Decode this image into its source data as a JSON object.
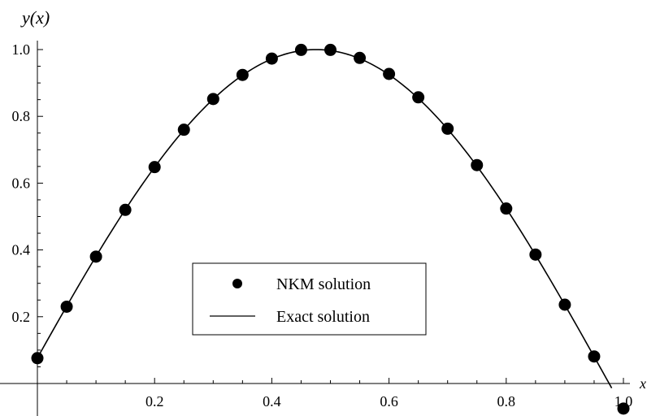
{
  "chart_data": {
    "type": "line",
    "ylabel": "y(x)",
    "xlabel": "x",
    "xlim": [
      0,
      1
    ],
    "ylim": [
      0,
      1.03
    ],
    "x_ticks": [
      0.2,
      0.4,
      0.6,
      0.8,
      1.0
    ],
    "x_tick_labels": [
      "0.2",
      "0.4",
      "0.6",
      "0.8",
      "1.0"
    ],
    "y_ticks": [
      0.2,
      0.4,
      0.6,
      0.8,
      1.0
    ],
    "y_tick_labels": [
      "0.2",
      "0.4",
      "0.6",
      "0.8",
      "1.0"
    ],
    "grid": false,
    "legend_position": "center-left",
    "colors": {
      "line": "#000000",
      "marker": "#000000"
    },
    "series": [
      {
        "name": "NKM solution",
        "style": "markers",
        "x": [
          0.0,
          0.05,
          0.1,
          0.15,
          0.2,
          0.25,
          0.3,
          0.35,
          0.4,
          0.45,
          0.5,
          0.55,
          0.6,
          0.65,
          0.7,
          0.75,
          0.8,
          0.85,
          0.9,
          0.95,
          1.0
        ],
        "y": [
          0.076,
          0.23,
          0.38,
          0.52,
          0.648,
          0.76,
          0.852,
          0.924,
          0.973,
          0.999,
          0.999,
          0.975,
          0.927,
          0.857,
          0.763,
          0.654,
          0.524,
          0.386,
          0.236,
          0.081,
          -0.075
        ]
      },
      {
        "name": "Exact solution",
        "style": "line",
        "function": "sin(pi*x + 0.0765)",
        "x_range": [
          0,
          0.98
        ]
      }
    ]
  }
}
